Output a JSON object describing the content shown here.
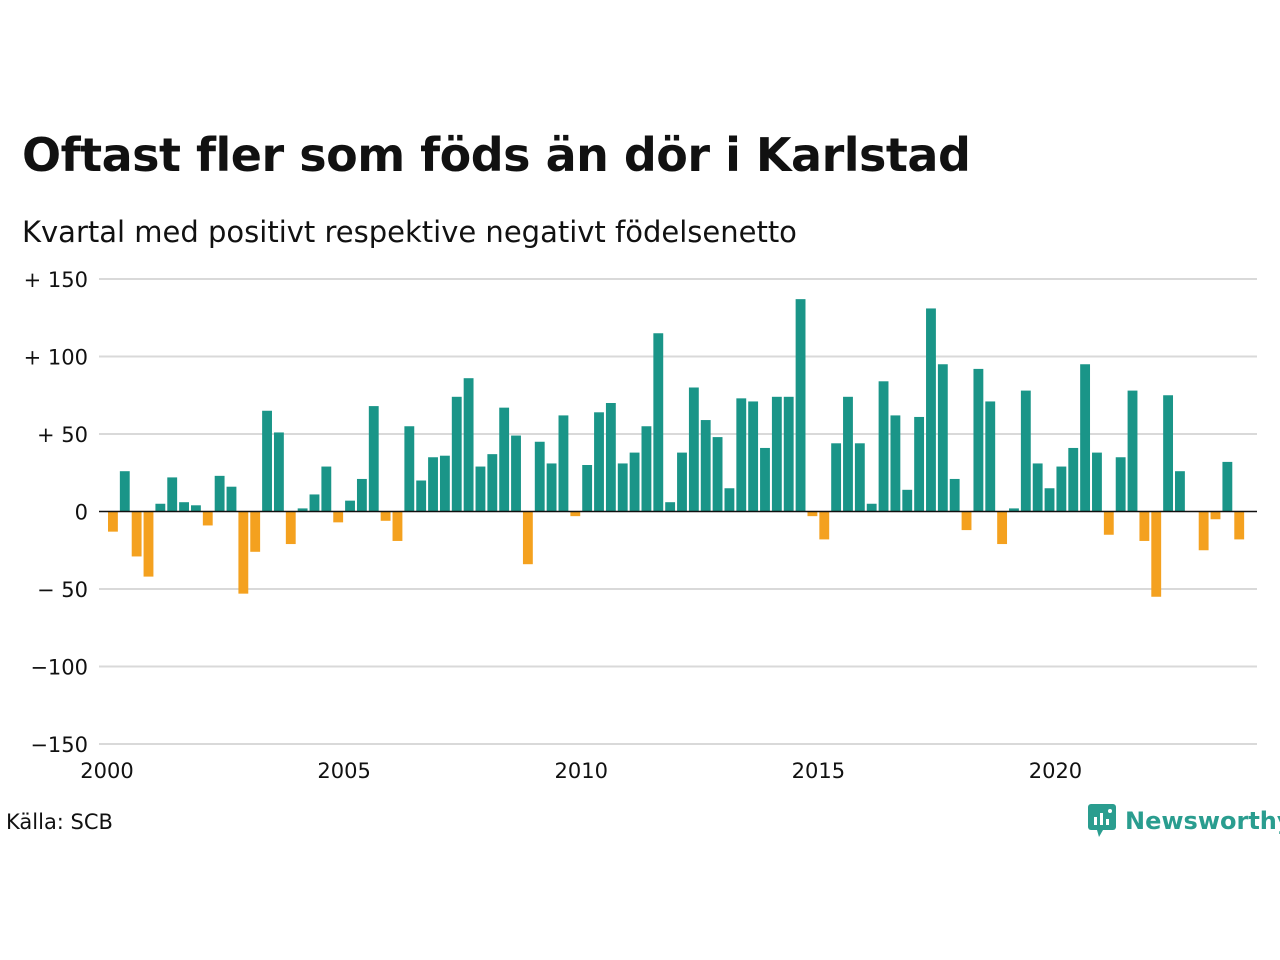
{
  "title": "Oftast fler som föds än dör i Karlstad",
  "subtitle": "Kvartal med positivt respektive negativt födelsenetto",
  "source": "Källa: SCB",
  "brand": "Newsworthy",
  "colors": {
    "positive": "#1a9588",
    "negative": "#f4a11f",
    "grid": "#d9d9d9",
    "axis": "#111111"
  },
  "chart_data": {
    "type": "bar",
    "x_start": 2000,
    "bar_step": 0.25,
    "xlim": [
      2000,
      2024.25
    ],
    "ylim": [
      -150,
      150
    ],
    "x_ticks": [
      {
        "value": 2000,
        "label": "2000"
      },
      {
        "value": 2005,
        "label": "2005"
      },
      {
        "value": 2010,
        "label": "2010"
      },
      {
        "value": 2015,
        "label": "2015"
      },
      {
        "value": 2020,
        "label": "2020"
      }
    ],
    "y_ticks": [
      {
        "value": 150,
        "label": "+ 150"
      },
      {
        "value": 100,
        "label": "+ 100"
      },
      {
        "value": 50,
        "label": "+  50"
      },
      {
        "value": 0,
        "label": "0"
      },
      {
        "value": -50,
        "label": "− 50"
      },
      {
        "value": -100,
        "label": "−100"
      },
      {
        "value": -150,
        "label": "−150"
      }
    ],
    "values": [
      -13,
      26,
      -29,
      -42,
      5,
      22,
      6,
      4,
      -9,
      23,
      16,
      -53,
      -26,
      65,
      51,
      -21,
      2,
      11,
      29,
      -7,
      7,
      21,
      68,
      -6,
      -19,
      55,
      20,
      35,
      36,
      74,
      86,
      29,
      37,
      67,
      49,
      -34,
      45,
      31,
      62,
      -3,
      30,
      64,
      70,
      31,
      38,
      55,
      115,
      6,
      38,
      80,
      59,
      48,
      15,
      73,
      71,
      41,
      74,
      74,
      137,
      -3,
      -18,
      44,
      74,
      44,
      5,
      84,
      62,
      14,
      61,
      131,
      95,
      21,
      -12,
      92,
      71,
      -21,
      2,
      78,
      31,
      15,
      29,
      41,
      95,
      38,
      -15,
      35,
      78,
      -19,
      -55,
      75,
      26,
      0,
      -25,
      -5,
      32,
      -18
    ]
  }
}
